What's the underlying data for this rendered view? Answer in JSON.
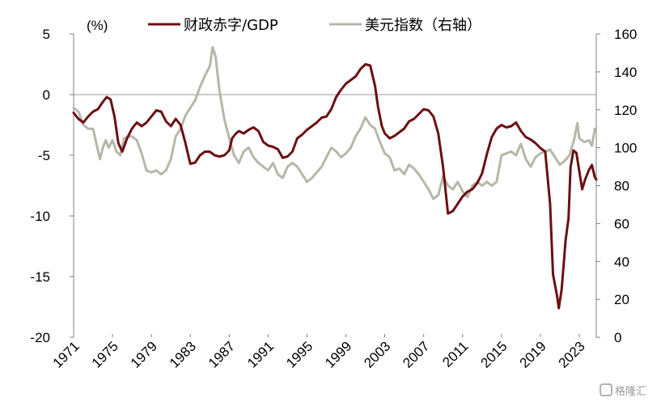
{
  "chart_data": {
    "type": "line",
    "unit_label": "(%)",
    "left_axis": {
      "ylim": [
        -20,
        5
      ],
      "ticks": [
        "5",
        "0",
        "-5",
        "-10",
        "-15",
        "-20"
      ],
      "tick_values": [
        5,
        0,
        -5,
        -10,
        -15,
        -20
      ]
    },
    "right_axis": {
      "ylim": [
        0,
        160
      ],
      "ticks": [
        "160",
        "140",
        "120",
        "100",
        "80",
        "60",
        "40",
        "20",
        "0"
      ],
      "tick_values": [
        160,
        140,
        120,
        100,
        80,
        60,
        40,
        20,
        0
      ]
    },
    "x_ticks": [
      "1971",
      "1975",
      "1979",
      "1983",
      "1987",
      "1991",
      "1995",
      "1999",
      "2003",
      "2007",
      "2011",
      "2015",
      "2019",
      "2023"
    ],
    "x_tick_values": [
      1971,
      1975,
      1979,
      1983,
      1987,
      1991,
      1995,
      1999,
      2003,
      2007,
      2011,
      2015,
      2019,
      2023
    ],
    "xlim": [
      1971,
      2024.75
    ],
    "series": [
      {
        "name": "财政赤字/GDP",
        "axis": "left",
        "color": "#6b0f12",
        "points": [
          [
            1971.0,
            -1.5
          ],
          [
            1971.5,
            -2.0
          ],
          [
            1972.0,
            -2.3
          ],
          [
            1972.5,
            -1.8
          ],
          [
            1973.0,
            -1.4
          ],
          [
            1973.5,
            -1.2
          ],
          [
            1974.0,
            -0.6
          ],
          [
            1974.4,
            -0.2
          ],
          [
            1974.8,
            -0.4
          ],
          [
            1975.2,
            -1.8
          ],
          [
            1975.6,
            -4.0
          ],
          [
            1976.0,
            -4.7
          ],
          [
            1976.5,
            -3.6
          ],
          [
            1977.0,
            -2.8
          ],
          [
            1977.5,
            -2.3
          ],
          [
            1978.0,
            -2.6
          ],
          [
            1978.5,
            -2.3
          ],
          [
            1979.0,
            -1.8
          ],
          [
            1979.5,
            -1.3
          ],
          [
            1980.0,
            -1.4
          ],
          [
            1980.5,
            -2.2
          ],
          [
            1981.0,
            -2.6
          ],
          [
            1981.5,
            -2.0
          ],
          [
            1982.0,
            -2.5
          ],
          [
            1982.5,
            -4.0
          ],
          [
            1983.0,
            -5.7
          ],
          [
            1983.5,
            -5.6
          ],
          [
            1984.0,
            -5.0
          ],
          [
            1984.5,
            -4.7
          ],
          [
            1985.0,
            -4.7
          ],
          [
            1985.5,
            -5.0
          ],
          [
            1986.0,
            -5.1
          ],
          [
            1986.5,
            -5.0
          ],
          [
            1987.0,
            -4.6
          ],
          [
            1987.3,
            -3.6
          ],
          [
            1987.7,
            -3.2
          ],
          [
            1988.0,
            -3.0
          ],
          [
            1988.5,
            -3.2
          ],
          [
            1989.0,
            -2.9
          ],
          [
            1989.5,
            -2.7
          ],
          [
            1990.0,
            -3.0
          ],
          [
            1990.5,
            -3.9
          ],
          [
            1991.0,
            -4.2
          ],
          [
            1991.5,
            -4.3
          ],
          [
            1992.0,
            -4.5
          ],
          [
            1992.5,
            -5.2
          ],
          [
            1993.0,
            -5.1
          ],
          [
            1993.5,
            -4.7
          ],
          [
            1994.0,
            -3.6
          ],
          [
            1994.5,
            -3.3
          ],
          [
            1995.0,
            -2.9
          ],
          [
            1995.5,
            -2.6
          ],
          [
            1996.0,
            -2.3
          ],
          [
            1996.5,
            -1.9
          ],
          [
            1997.0,
            -1.8
          ],
          [
            1997.5,
            -1.2
          ],
          [
            1998.0,
            -0.2
          ],
          [
            1998.5,
            0.4
          ],
          [
            1999.0,
            0.9
          ],
          [
            1999.5,
            1.2
          ],
          [
            2000.0,
            1.5
          ],
          [
            2000.5,
            2.1
          ],
          [
            2001.0,
            2.5
          ],
          [
            2001.5,
            2.4
          ],
          [
            2002.0,
            0.7
          ],
          [
            2002.3,
            -1.0
          ],
          [
            2002.7,
            -2.6
          ],
          [
            2003.0,
            -3.2
          ],
          [
            2003.5,
            -3.6
          ],
          [
            2004.0,
            -3.4
          ],
          [
            2004.5,
            -3.1
          ],
          [
            2005.0,
            -2.8
          ],
          [
            2005.5,
            -2.2
          ],
          [
            2006.0,
            -2.0
          ],
          [
            2006.5,
            -1.6
          ],
          [
            2007.0,
            -1.2
          ],
          [
            2007.5,
            -1.3
          ],
          [
            2008.0,
            -1.8
          ],
          [
            2008.5,
            -3.2
          ],
          [
            2009.0,
            -6.0
          ],
          [
            2009.5,
            -9.8
          ],
          [
            2010.0,
            -9.6
          ],
          [
            2010.5,
            -9.0
          ],
          [
            2011.0,
            -8.4
          ],
          [
            2011.5,
            -8.0
          ],
          [
            2012.0,
            -7.8
          ],
          [
            2012.5,
            -7.3
          ],
          [
            2013.0,
            -6.5
          ],
          [
            2013.5,
            -4.9
          ],
          [
            2014.0,
            -3.5
          ],
          [
            2014.5,
            -2.8
          ],
          [
            2015.0,
            -2.5
          ],
          [
            2015.5,
            -2.7
          ],
          [
            2016.0,
            -2.6
          ],
          [
            2016.5,
            -2.3
          ],
          [
            2017.0,
            -3.0
          ],
          [
            2017.5,
            -3.5
          ],
          [
            2018.0,
            -3.7
          ],
          [
            2018.5,
            -4.0
          ],
          [
            2019.0,
            -4.4
          ],
          [
            2019.5,
            -4.7
          ],
          [
            2020.0,
            -9.0
          ],
          [
            2020.3,
            -14.8
          ],
          [
            2020.7,
            -16.5
          ],
          [
            2020.9,
            -17.6
          ],
          [
            2021.2,
            -16.0
          ],
          [
            2021.6,
            -12.0
          ],
          [
            2021.9,
            -10.2
          ],
          [
            2022.1,
            -6.0
          ],
          [
            2022.4,
            -4.6
          ],
          [
            2022.7,
            -4.8
          ],
          [
            2023.0,
            -6.3
          ],
          [
            2023.3,
            -7.8
          ],
          [
            2023.6,
            -7.0
          ],
          [
            2024.0,
            -6.2
          ],
          [
            2024.3,
            -5.8
          ],
          [
            2024.6,
            -6.8
          ],
          [
            2024.75,
            -7.0
          ]
        ]
      },
      {
        "name": "美元指数（右轴）",
        "axis": "right",
        "color": "#b7b7a9",
        "points": [
          [
            1971.0,
            121
          ],
          [
            1971.5,
            119
          ],
          [
            1972.0,
            112
          ],
          [
            1972.5,
            110
          ],
          [
            1973.0,
            110
          ],
          [
            1973.4,
            101
          ],
          [
            1973.7,
            94
          ],
          [
            1974.0,
            100
          ],
          [
            1974.3,
            104
          ],
          [
            1974.6,
            100
          ],
          [
            1975.0,
            104
          ],
          [
            1975.4,
            98
          ],
          [
            1975.8,
            96
          ],
          [
            1976.2,
            105
          ],
          [
            1976.6,
            106
          ],
          [
            1977.0,
            106
          ],
          [
            1977.5,
            104
          ],
          [
            1978.0,
            97
          ],
          [
            1978.5,
            88
          ],
          [
            1979.0,
            87
          ],
          [
            1979.5,
            88
          ],
          [
            1980.0,
            86
          ],
          [
            1980.5,
            88
          ],
          [
            1981.0,
            94
          ],
          [
            1981.5,
            106
          ],
          [
            1982.0,
            110
          ],
          [
            1982.5,
            117
          ],
          [
            1983.0,
            121
          ],
          [
            1983.5,
            125
          ],
          [
            1984.0,
            132
          ],
          [
            1984.5,
            138
          ],
          [
            1985.0,
            143
          ],
          [
            1985.3,
            153
          ],
          [
            1985.6,
            148
          ],
          [
            1986.0,
            130
          ],
          [
            1986.5,
            115
          ],
          [
            1987.0,
            105
          ],
          [
            1987.5,
            96
          ],
          [
            1988.0,
            92
          ],
          [
            1988.5,
            98
          ],
          [
            1989.0,
            100
          ],
          [
            1989.5,
            95
          ],
          [
            1990.0,
            92
          ],
          [
            1990.5,
            90
          ],
          [
            1991.0,
            88
          ],
          [
            1991.5,
            92
          ],
          [
            1992.0,
            86
          ],
          [
            1992.5,
            84
          ],
          [
            1993.0,
            90
          ],
          [
            1993.5,
            92
          ],
          [
            1994.0,
            90
          ],
          [
            1994.5,
            86
          ],
          [
            1995.0,
            82
          ],
          [
            1995.5,
            84
          ],
          [
            1996.0,
            87
          ],
          [
            1996.5,
            90
          ],
          [
            1997.0,
            95
          ],
          [
            1997.5,
            100
          ],
          [
            1998.0,
            98
          ],
          [
            1998.5,
            95
          ],
          [
            1999.0,
            97
          ],
          [
            1999.5,
            100
          ],
          [
            2000.0,
            106
          ],
          [
            2000.5,
            110
          ],
          [
            2001.0,
            116
          ],
          [
            2001.5,
            112
          ],
          [
            2002.0,
            110
          ],
          [
            2002.5,
            103
          ],
          [
            2003.0,
            97
          ],
          [
            2003.5,
            95
          ],
          [
            2004.0,
            88
          ],
          [
            2004.5,
            89
          ],
          [
            2005.0,
            86
          ],
          [
            2005.5,
            91
          ],
          [
            2006.0,
            89
          ],
          [
            2006.5,
            86
          ],
          [
            2007.0,
            82
          ],
          [
            2007.5,
            78
          ],
          [
            2008.0,
            73
          ],
          [
            2008.5,
            75
          ],
          [
            2009.0,
            85
          ],
          [
            2009.5,
            80
          ],
          [
            2010.0,
            78
          ],
          [
            2010.5,
            82
          ],
          [
            2011.0,
            77
          ],
          [
            2011.5,
            74
          ],
          [
            2012.0,
            80
          ],
          [
            2012.5,
            82
          ],
          [
            2013.0,
            80
          ],
          [
            2013.5,
            82
          ],
          [
            2014.0,
            80
          ],
          [
            2014.5,
            82
          ],
          [
            2015.0,
            96
          ],
          [
            2015.5,
            97
          ],
          [
            2016.0,
            98
          ],
          [
            2016.5,
            96
          ],
          [
            2017.0,
            102
          ],
          [
            2017.5,
            94
          ],
          [
            2018.0,
            90
          ],
          [
            2018.5,
            95
          ],
          [
            2019.0,
            97
          ],
          [
            2019.5,
            98
          ],
          [
            2020.0,
            99
          ],
          [
            2020.5,
            95
          ],
          [
            2021.0,
            91
          ],
          [
            2021.5,
            93
          ],
          [
            2022.0,
            96
          ],
          [
            2022.5,
            105
          ],
          [
            2022.8,
            113
          ],
          [
            2023.0,
            105
          ],
          [
            2023.5,
            103
          ],
          [
            2024.0,
            104
          ],
          [
            2024.3,
            101
          ],
          [
            2024.6,
            110
          ]
        ]
      }
    ]
  },
  "watermark": "格隆汇"
}
